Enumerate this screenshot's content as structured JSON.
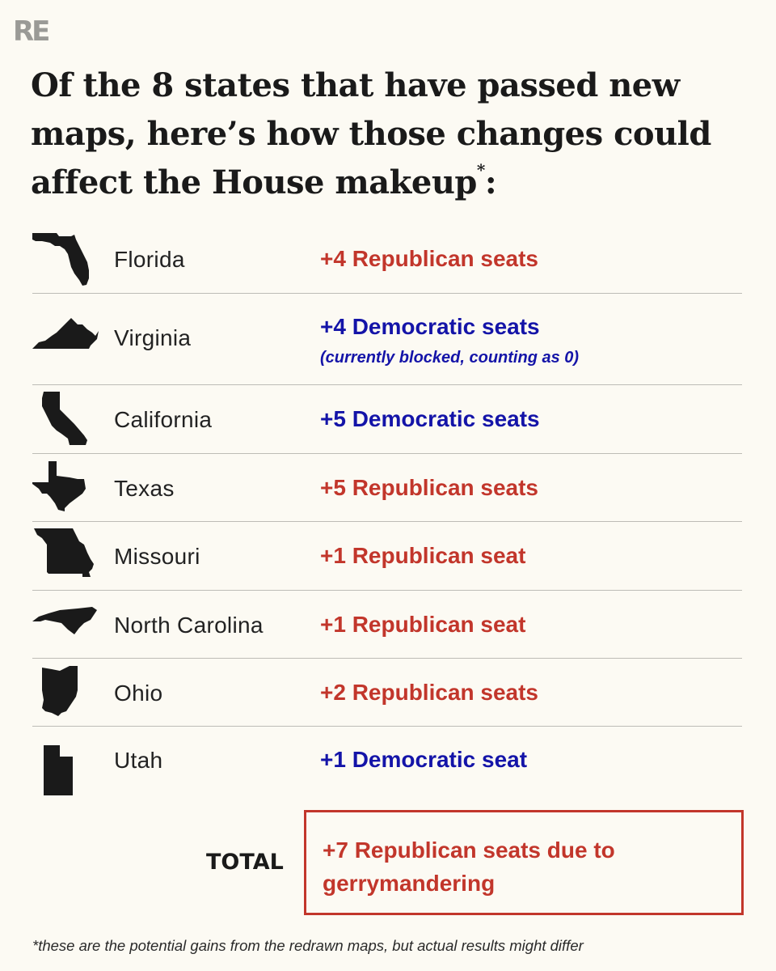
{
  "logo": "RE",
  "headline": {
    "text": "Of the 8 states that have passed new maps, here’s how those changes could affect the House makeup",
    "asterisk": "*",
    "colon": ":"
  },
  "rows": [
    {
      "state": "Florida",
      "icon": "florida-icon",
      "result": "+4 Republican seats",
      "party": "republican"
    },
    {
      "state": "Virginia",
      "icon": "virginia-icon",
      "result": "+4 Democratic seats",
      "party": "democratic",
      "note": "(currently blocked, counting as 0)"
    },
    {
      "state": "California",
      "icon": "california-icon",
      "result": "+5 Democratic seats",
      "party": "democratic"
    },
    {
      "state": "Texas",
      "icon": "texas-icon",
      "result": "+5 Republican seats",
      "party": "republican"
    },
    {
      "state": "Missouri",
      "icon": "missouri-icon",
      "result": "+1 Republican seat",
      "party": "republican"
    },
    {
      "state": "North Carolina",
      "icon": "north-carolina-icon",
      "result": "+1 Republican seat",
      "party": "republican"
    },
    {
      "state": "Ohio",
      "icon": "ohio-icon",
      "result": "+2 Republican seats",
      "party": "republican"
    },
    {
      "state": "Utah",
      "icon": "utah-icon",
      "result": "+1 Democratic seat",
      "party": "democratic"
    }
  ],
  "total": {
    "label": "TOTAL",
    "value": "+7 Republican seats due to gerrymandering"
  },
  "footnote": "*these are the potential gains from the redrawn maps, but actual results might differ",
  "colors": {
    "background": "#fcfaf3",
    "republican": "#c2362b",
    "democratic": "#1414a8",
    "divider": "#bdbcb6"
  }
}
